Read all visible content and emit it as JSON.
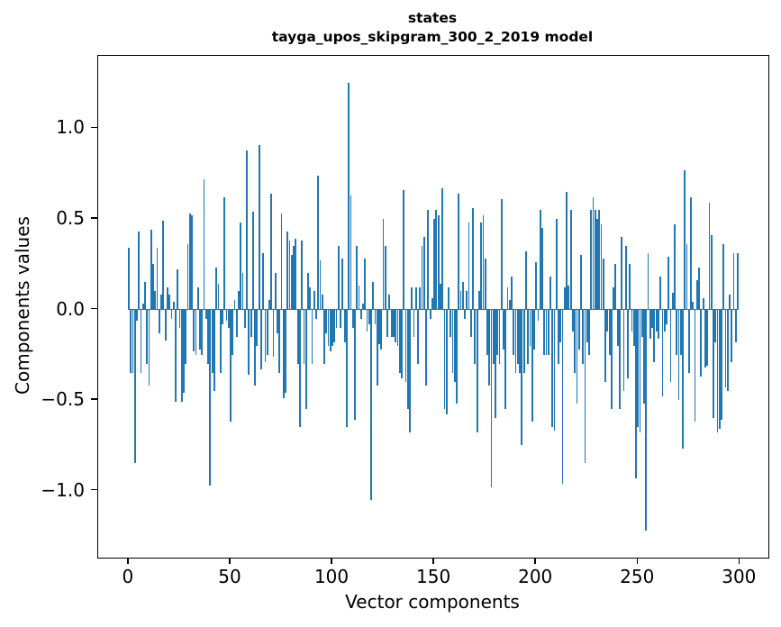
{
  "title": {
    "line1": "states",
    "line2": "tayga_upos_skipgram_300_2_2019 model"
  },
  "chart_data": {
    "type": "bar",
    "title": "states — tayga_upos_skipgram_300_2_2019 model",
    "xlabel": "Vector components",
    "ylabel": "Components values",
    "bar_color": "#1f77b4",
    "n_components": 300,
    "xlim": [
      -15,
      314
    ],
    "ylim": [
      -1.37,
      1.4
    ],
    "grid": false,
    "legend": null,
    "x_ticks": [
      {
        "value": 0,
        "label": "0"
      },
      {
        "value": 50,
        "label": "50"
      },
      {
        "value": 100,
        "label": "100"
      },
      {
        "value": 150,
        "label": "150"
      },
      {
        "value": 200,
        "label": "200"
      },
      {
        "value": 250,
        "label": "250"
      },
      {
        "value": 300,
        "label": "300"
      }
    ],
    "y_ticks": [
      {
        "value": 1.0,
        "label": "1.0"
      },
      {
        "value": 0.5,
        "label": "0.5"
      },
      {
        "value": 0.0,
        "label": "0.0"
      },
      {
        "value": -0.5,
        "label": "−0.5"
      },
      {
        "value": -1.0,
        "label": "−1.0"
      }
    ],
    "values": [
      0.34,
      -0.35,
      -0.35,
      -0.85,
      -0.06,
      0.43,
      -0.35,
      0.03,
      0.15,
      -0.3,
      -0.42,
      0.44,
      0.25,
      0.1,
      0.34,
      -0.13,
      0.08,
      0.49,
      -0.17,
      0.12,
      0.08,
      -0.05,
      0.04,
      -0.51,
      0.22,
      -0.1,
      -0.51,
      -0.46,
      -0.3,
      0.36,
      0.53,
      0.52,
      -0.23,
      -0.25,
      0.12,
      -0.22,
      -0.25,
      0.72,
      -0.05,
      -0.3,
      -0.97,
      -0.35,
      -0.45,
      0.23,
      0.14,
      -0.35,
      -0.08,
      0.62,
      -0.06,
      -0.1,
      -0.62,
      -0.25,
      0.05,
      -0.15,
      0.1,
      0.48,
      0.2,
      -0.1,
      0.88,
      -0.36,
      -0.15,
      0.54,
      -0.42,
      -0.2,
      0.91,
      -0.33,
      0.31,
      -0.29,
      -0.25,
      0.05,
      0.64,
      -0.26,
      0.2,
      -0.13,
      -0.35,
      0.53,
      -0.49,
      -0.46,
      0.43,
      0.38,
      0.3,
      0.35,
      0.39,
      -0.3,
      -0.65,
      0.38,
      -0.3,
      -0.55,
      0.2,
      0.12,
      -0.3,
      0.1,
      -0.05,
      0.74,
      0.27,
      0.08,
      -0.3,
      -0.13,
      -0.2,
      -0.23,
      -0.2,
      -0.18,
      -0.1,
      0.35,
      -0.1,
      0.28,
      -0.18,
      -0.65,
      1.25,
      0.63,
      -0.1,
      -0.61,
      0.35,
      0.13,
      -0.05,
      0.03,
      0.28,
      -0.12,
      -0.08,
      -1.05,
      0.15,
      -0.08,
      -0.42,
      -0.19,
      -0.22,
      0.5,
      0.35,
      -0.15,
      0.08,
      -0.15,
      -0.15,
      -0.18,
      -0.2,
      -0.35,
      -0.38,
      0.66,
      -0.4,
      -0.55,
      -0.68,
      0.12,
      -0.15,
      0.12,
      -0.3,
      0.12,
      0.35,
      0.4,
      -0.42,
      0.55,
      -0.05,
      0.06,
      0.5,
      0.55,
      0.52,
      0.14,
      0.67,
      -0.55,
      -0.58,
      0.12,
      -0.15,
      -0.35,
      -0.4,
      -0.52,
      0.64,
      0.1,
      0.15,
      -0.05,
      0.1,
      0.48,
      -0.15,
      0.56,
      -0.3,
      -0.68,
      0.1,
      0.48,
      0.52,
      0.28,
      -0.25,
      -0.42,
      -0.98,
      -0.3,
      -0.6,
      -0.25,
      -0.3,
      0.61,
      -0.22,
      -0.55,
      0.12,
      0.05,
      0.18,
      -0.25,
      -0.35,
      -0.3,
      -0.35,
      -0.75,
      -0.35,
      0.32,
      -0.3,
      -0.2,
      -0.62,
      -0.22,
      0.26,
      -0.06,
      0.55,
      0.45,
      -0.25,
      -0.25,
      -0.25,
      0.18,
      -0.65,
      -0.67,
      0.5,
      -0.3,
      -0.18,
      -0.96,
      0.12,
      0.65,
      0.13,
      0.55,
      -0.12,
      -0.35,
      -0.52,
      -0.22,
      0.3,
      -0.3,
      -0.85,
      -0.18,
      -0.25,
      0.55,
      0.62,
      0.55,
      0.5,
      0.55,
      0.47,
      0.28,
      -0.4,
      -0.12,
      -0.25,
      -0.55,
      0.12,
      0.25,
      -0.2,
      -0.55,
      0.4,
      -0.45,
      0.35,
      -0.38,
      0.25,
      -0.12,
      -0.2,
      -0.93,
      -0.65,
      -0.68,
      -0.15,
      -0.52,
      -1.22,
      0.31,
      -0.16,
      -0.1,
      -0.29,
      -0.12,
      -0.16,
      0.18,
      -0.48,
      -0.12,
      -0.08,
      0.29,
      -0.4,
      0.09,
      0.47,
      -0.25,
      -0.5,
      -0.25,
      -0.77,
      0.77,
      0.36,
      -0.35,
      0.62,
      0.04,
      -0.62,
      0.16,
      0.23,
      -0.37,
      0.06,
      -0.32,
      -0.31,
      0.59,
      0.41,
      -0.6,
      -0.18,
      -0.68,
      -0.66,
      -0.61,
      0.36,
      -0.43,
      -0.45,
      0.08,
      -0.29,
      0.31,
      -0.18,
      0.31
    ]
  }
}
